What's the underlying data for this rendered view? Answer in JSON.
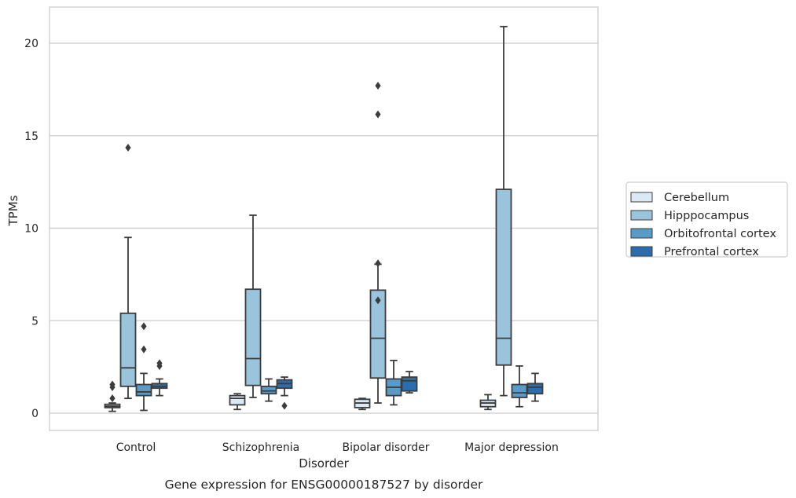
{
  "chart_data": {
    "type": "box",
    "title": "Gene expression for ENSG00000187527 by disorder",
    "xlabel": "Disorder",
    "ylabel": "TPMs",
    "ylim": [
      -0.9,
      22
    ],
    "yticks": [
      0,
      5,
      10,
      15,
      20
    ],
    "grid": true,
    "legend_position": "right",
    "categories": [
      "Control",
      "Schizophrenia",
      "Bipolar disorder",
      "Major depression"
    ],
    "series": [
      {
        "name": "Cerebellum",
        "color": "#dbe9f6",
        "boxes": [
          {
            "whislo": 0.1,
            "q1": 0.3,
            "med": 0.38,
            "q3": 0.48,
            "whishi": 0.55,
            "fliers": [
              0.8,
              1.4,
              1.55
            ]
          },
          {
            "whislo": 0.2,
            "q1": 0.45,
            "med": 0.8,
            "q3": 0.95,
            "whishi": 1.05,
            "fliers": []
          },
          {
            "whislo": 0.2,
            "q1": 0.3,
            "med": 0.55,
            "q3": 0.75,
            "whishi": 0.8,
            "fliers": []
          },
          {
            "whislo": 0.2,
            "q1": 0.35,
            "med": 0.55,
            "q3": 0.7,
            "whishi": 1.0,
            "fliers": []
          }
        ]
      },
      {
        "name": "Hipppocampus",
        "color": "#9ac3dc",
        "boxes": [
          {
            "whislo": 0.8,
            "q1": 1.45,
            "med": 2.45,
            "q3": 5.4,
            "whishi": 9.5,
            "fliers": [
              14.35
            ]
          },
          {
            "whislo": 0.85,
            "q1": 1.5,
            "med": 2.95,
            "q3": 6.7,
            "whishi": 10.7,
            "fliers": []
          },
          {
            "whislo": 0.55,
            "q1": 1.9,
            "med": 4.05,
            "q3": 6.65,
            "whishi": 8.05,
            "fliers": [
              6.1,
              8.1,
              16.15,
              17.7
            ]
          },
          {
            "whislo": 0.95,
            "q1": 2.6,
            "med": 4.05,
            "q3": 12.1,
            "whishi": 20.9,
            "fliers": []
          }
        ]
      },
      {
        "name": "Orbitofrontal cortex",
        "color": "#5a9ac7",
        "boxes": [
          {
            "whislo": 0.15,
            "q1": 0.95,
            "med": 1.15,
            "q3": 1.55,
            "whishi": 2.15,
            "fliers": [
              3.45,
              4.7
            ]
          },
          {
            "whislo": 0.65,
            "q1": 1.05,
            "med": 1.2,
            "q3": 1.45,
            "whishi": 1.85,
            "fliers": []
          },
          {
            "whislo": 0.45,
            "q1": 0.95,
            "med": 1.4,
            "q3": 1.85,
            "whishi": 2.85,
            "fliers": []
          },
          {
            "whislo": 0.35,
            "q1": 0.85,
            "med": 1.1,
            "q3": 1.55,
            "whishi": 2.55,
            "fliers": []
          }
        ]
      },
      {
        "name": "Prefrontal cortex",
        "color": "#2c6ead",
        "boxes": [
          {
            "whislo": 0.95,
            "q1": 1.35,
            "med": 1.45,
            "q3": 1.6,
            "whishi": 1.85,
            "fliers": [
              2.55,
              2.7
            ]
          },
          {
            "whislo": 0.95,
            "q1": 1.35,
            "med": 1.6,
            "q3": 1.8,
            "whishi": 1.95,
            "fliers": [
              0.4
            ]
          },
          {
            "whislo": 1.1,
            "q1": 1.2,
            "med": 1.75,
            "q3": 1.95,
            "whishi": 2.25,
            "fliers": []
          },
          {
            "whislo": 0.65,
            "q1": 1.05,
            "med": 1.4,
            "q3": 1.6,
            "whishi": 2.15,
            "fliers": []
          }
        ]
      }
    ]
  }
}
